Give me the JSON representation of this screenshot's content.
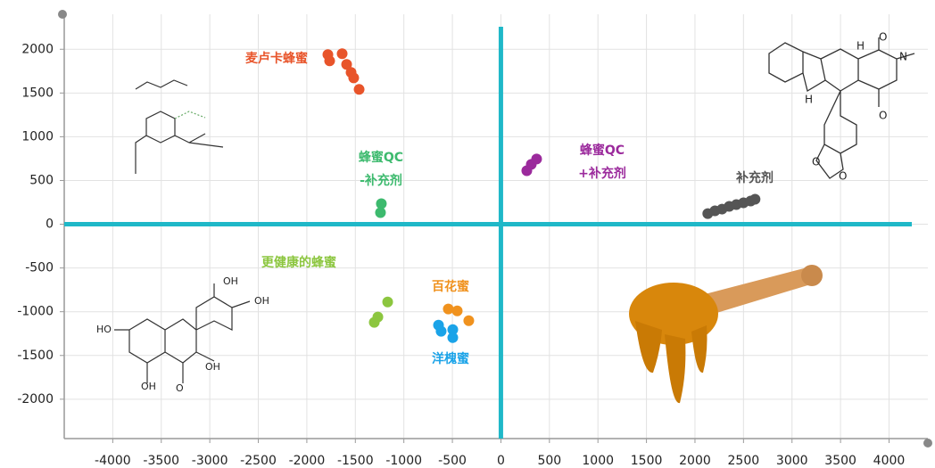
{
  "chart_data": {
    "type": "scatter",
    "xlim": [
      -4500,
      4400
    ],
    "ylim": [
      -2450,
      2400
    ],
    "xticks": [
      -4000,
      -3500,
      -3000,
      -2500,
      -2000,
      -1500,
      -1000,
      -500,
      0,
      500,
      1000,
      1500,
      2000,
      2500,
      3000,
      3500,
      4000
    ],
    "yticks": [
      -2000,
      -1500,
      -1000,
      -500,
      0,
      500,
      1000,
      1500,
      2000
    ],
    "grid": true,
    "series": [
      {
        "name": "麦卢卡蜂蜜",
        "color": "#e8542a",
        "x": [
          -1783,
          -1765,
          -1636,
          -1590,
          -1544,
          -1517,
          -1461
        ],
        "values": [
          1939,
          1867,
          1949,
          1827,
          1735,
          1673,
          1541
        ]
      },
      {
        "name": "蜂蜜QC\n-补充剂",
        "color": "#3dba6e",
        "x": [
          -1232,
          -1241
        ],
        "values": [
          235,
          133
        ]
      },
      {
        "name": "蜂蜜QC\n+补充剂",
        "color": "#9b2a9c",
        "x": [
          267,
          313,
          368
        ],
        "values": [
          612,
          684,
          745
        ]
      },
      {
        "name": "补充剂",
        "color": "#555555",
        "x": [
          2132,
          2206,
          2279,
          2353,
          2426,
          2500,
          2574,
          2619
        ],
        "values": [
          122,
          153,
          173,
          204,
          224,
          245,
          265,
          286
        ]
      },
      {
        "name": "更健康的蜂蜜",
        "color": "#8cc63f",
        "x": [
          -1305,
          -1268,
          -1167
        ],
        "values": [
          -1122,
          -1061,
          -888
        ]
      },
      {
        "name": "百花蜜",
        "color": "#f0921e",
        "x": [
          -542,
          -450,
          -331
        ],
        "values": [
          -969,
          -990,
          -1102
        ]
      },
      {
        "name": "洋槐蜜",
        "color": "#1aa3e8",
        "x": [
          -643,
          -616,
          -496,
          -496
        ],
        "values": [
          -1153,
          -1224,
          -1204,
          -1296
        ]
      }
    ]
  }
}
